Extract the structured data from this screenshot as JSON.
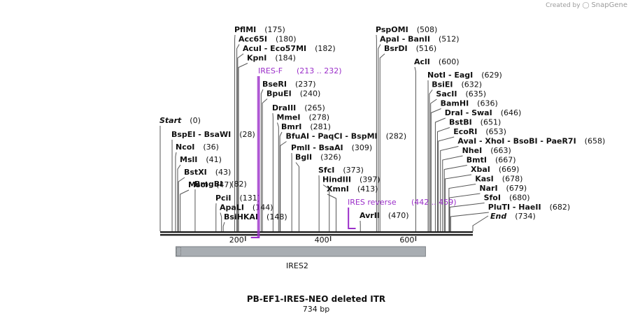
{
  "credit": {
    "prefix": "Created by",
    "brand": "SnapGene"
  },
  "map": {
    "title": "PB-EF1-IRES-NEO deleted ITR",
    "length_label": "734 bp",
    "length_bp": 734,
    "scale_ticks": [
      "200",
      "400",
      "600"
    ],
    "colors": {
      "backbone": "#222222",
      "primer": "#9b2fc9",
      "feature": "#a8adb2",
      "lines": "#555555"
    }
  },
  "sites": [
    {
      "pos": 0,
      "label": "Start",
      "num": "(0)",
      "style": "terminal"
    },
    {
      "pos": 28,
      "label": "BspEI   -  BsaWI",
      "num": "(28)"
    },
    {
      "pos": 36,
      "label": "NcoI",
      "num": "(36)"
    },
    {
      "pos": 41,
      "label": "MslI",
      "num": "(41)"
    },
    {
      "pos": 43,
      "label": "BstXI",
      "num": "(43)"
    },
    {
      "pos": 47,
      "label": "MscI",
      "num": "(47)"
    },
    {
      "pos": 82,
      "label": "BmgBI",
      "num": "(82)"
    },
    {
      "pos": 131,
      "label": "PciI",
      "num": "(131)"
    },
    {
      "pos": 144,
      "label": "ApaLI",
      "num": "(144)"
    },
    {
      "pos": 148,
      "label": "BsiHKAI",
      "num": "(148)"
    },
    {
      "pos": 175,
      "label": "PflMI",
      "num": "(175)"
    },
    {
      "pos": 180,
      "label": "Acc65I",
      "num": "(180)"
    },
    {
      "pos": 182,
      "label": "AcuI   -  Eco57MI",
      "num": "(182)"
    },
    {
      "pos": 184,
      "label": "KpnI",
      "num": "(184)"
    },
    {
      "pos": 237,
      "label": "BseRI",
      "num": "(237)"
    },
    {
      "pos": 240,
      "label": "BpuEI",
      "num": "(240)"
    },
    {
      "pos": 265,
      "label": "DraIII",
      "num": "(265)"
    },
    {
      "pos": 278,
      "label": "MmeI",
      "num": "(278)"
    },
    {
      "pos": 281,
      "label": "BmrI",
      "num": "(281)"
    },
    {
      "pos": 282,
      "label": "BfuAI   -  PaqCI   -  BspMI",
      "num": "(282)"
    },
    {
      "pos": 309,
      "label": "PmlI   -  BsaAI",
      "num": "(309)"
    },
    {
      "pos": 326,
      "label": "BglI",
      "num": "(326)"
    },
    {
      "pos": 373,
      "label": "SfcI",
      "num": "(373)"
    },
    {
      "pos": 397,
      "label": "HindIII",
      "num": "(397)"
    },
    {
      "pos": 413,
      "label": "XmnI",
      "num": "(413)"
    },
    {
      "pos": 470,
      "label": "AvrII",
      "num": "(470)"
    },
    {
      "pos": 508,
      "label": "PspOMI",
      "num": "(508)"
    },
    {
      "pos": 512,
      "label": "ApaI   -  BanII",
      "num": "(512)"
    },
    {
      "pos": 516,
      "label": "BsrDI",
      "num": "(516)"
    },
    {
      "pos": 600,
      "label": "AclI",
      "num": "(600)"
    },
    {
      "pos": 629,
      "label": "NotI   -  EagI",
      "num": "(629)"
    },
    {
      "pos": 632,
      "label": "BsiEI",
      "num": "(632)"
    },
    {
      "pos": 635,
      "label": "SacII",
      "num": "(635)"
    },
    {
      "pos": 636,
      "label": "BamHI",
      "num": "(636)"
    },
    {
      "pos": 646,
      "label": "DraI   -  SwaI",
      "num": "(646)"
    },
    {
      "pos": 651,
      "label": "BstBI",
      "num": "(651)"
    },
    {
      "pos": 653,
      "label": "EcoRI",
      "num": "(653)"
    },
    {
      "pos": 658,
      "label": "AvaI   -  XhoI   -  BsoBI   -  PaeR7I",
      "num": "(658)"
    },
    {
      "pos": 663,
      "label": "NheI",
      "num": "(663)"
    },
    {
      "pos": 667,
      "label": "BmtI",
      "num": "(667)"
    },
    {
      "pos": 669,
      "label": "XbaI",
      "num": "(669)"
    },
    {
      "pos": 678,
      "label": "KasI",
      "num": "(678)"
    },
    {
      "pos": 679,
      "label": "NarI",
      "num": "(679)"
    },
    {
      "pos": 680,
      "label": "SfoI",
      "num": "(680)"
    },
    {
      "pos": 682,
      "label": "PluTI   -  HaeII",
      "num": "(682)"
    },
    {
      "pos": 734,
      "label": "End",
      "num": "(734)",
      "style": "terminal"
    }
  ],
  "primers": [
    {
      "label": "IRES-F",
      "range": "(213 .. 232)",
      "start": 213,
      "end": 232,
      "strand": "bottom"
    },
    {
      "label": "IRES reverse",
      "range": "(442 .. 459)",
      "start": 442,
      "end": 459,
      "strand": "top"
    }
  ],
  "features": [
    {
      "label": "IRES2",
      "start": 37,
      "end": 623
    }
  ]
}
